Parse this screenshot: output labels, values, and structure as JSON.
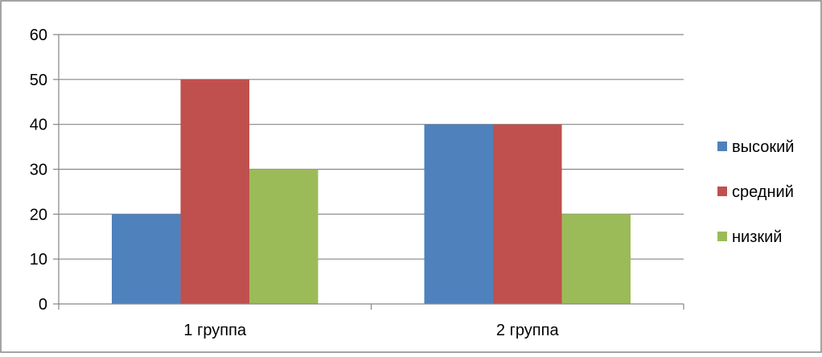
{
  "chart_data": {
    "type": "bar",
    "categories": [
      "1 группа",
      "2 группа"
    ],
    "series": [
      {
        "name": "высокий",
        "values": [
          20,
          40
        ],
        "color": "#4F81BD"
      },
      {
        "name": "средний",
        "values": [
          50,
          40
        ],
        "color": "#C0504D"
      },
      {
        "name": "низкий",
        "values": [
          30,
          20
        ],
        "color": "#9BBB59"
      }
    ],
    "title": "",
    "xlabel": "",
    "ylabel": "",
    "ylim": [
      0,
      60
    ],
    "yticks": [
      0,
      10,
      20,
      30,
      40,
      50,
      60
    ],
    "grid": true,
    "legend": "right",
    "gridline_color": "#868686",
    "border_color": "#868686"
  }
}
